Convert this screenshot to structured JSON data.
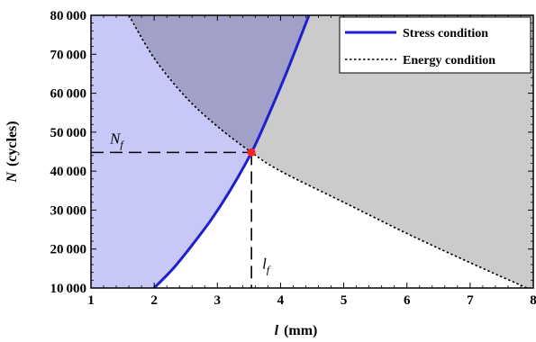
{
  "chart_data": {
    "type": "line",
    "title": "",
    "xlabel": {
      "symbol": "l",
      "unit": "(mm)"
    },
    "ylabel": {
      "symbol": "N",
      "unit": "(cycles)"
    },
    "xlim": [
      1,
      8
    ],
    "ylim": [
      10000,
      80000
    ],
    "x_ticks": [
      1,
      2,
      3,
      4,
      5,
      6,
      7,
      8
    ],
    "y_ticks": [
      10000,
      20000,
      30000,
      40000,
      50000,
      60000,
      70000,
      80000
    ],
    "y_tick_labels": [
      "10 000",
      "20 000",
      "30 000",
      "40 000",
      "50 000",
      "60 000",
      "70 000",
      "80 000"
    ],
    "grid": false,
    "legend_position": "top-right",
    "series": [
      {
        "name": "Stress condition",
        "color": "#1f1fd0",
        "style": "solid",
        "points": [
          [
            2.0,
            10000
          ],
          [
            2.3,
            15000
          ],
          [
            2.6,
            21000
          ],
          [
            2.9,
            27500
          ],
          [
            3.2,
            35000
          ],
          [
            3.54,
            44800
          ],
          [
            3.8,
            54000
          ],
          [
            4.1,
            65500
          ],
          [
            4.45,
            80000
          ]
        ]
      },
      {
        "name": "Energy condition",
        "color": "#000000",
        "style": "dotted",
        "points": [
          [
            1.6,
            80000
          ],
          [
            2.0,
            69000
          ],
          [
            2.5,
            59000
          ],
          [
            3.0,
            51500
          ],
          [
            3.54,
            44800
          ],
          [
            4.0,
            40000
          ],
          [
            5.0,
            32000
          ],
          [
            6.0,
            24000
          ],
          [
            7.0,
            16500
          ],
          [
            7.9,
            10000
          ]
        ]
      }
    ],
    "regions": {
      "below_energy_left_of_stress": "#c8c8f8",
      "above_energy_left_of_stress": "#a0a0c8",
      "above_energy_right_of_stress": "#cbcbcb",
      "below_energy_right_of_stress": "#ffffff"
    },
    "intersection": {
      "x": 3.54,
      "y": 44800,
      "color": "#ff2020"
    },
    "annotations": [
      {
        "text": "N",
        "sub": "f"
      },
      {
        "text": "l",
        "sub": "f"
      }
    ]
  }
}
